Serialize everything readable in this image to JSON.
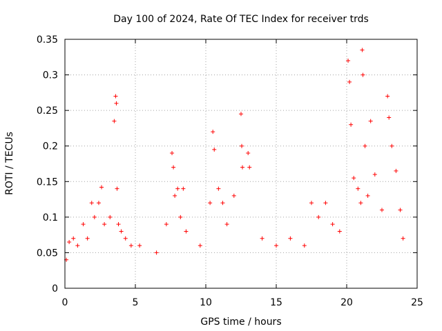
{
  "chart_data": {
    "type": "scatter",
    "title": "Day 100 of 2024, Rate Of TEC Index for receiver trds",
    "xlabel": "GPS time / hours",
    "ylabel": "ROTI / TECUs",
    "xlim": [
      0,
      25
    ],
    "ylim": [
      0,
      0.35
    ],
    "xticks": [
      0,
      5,
      10,
      15,
      20,
      25
    ],
    "xtick_labels": [
      "0",
      "5",
      "10",
      "15",
      "20",
      "25"
    ],
    "yticks": [
      0,
      0.05,
      0.1,
      0.15,
      0.2,
      0.25,
      0.3,
      0.35
    ],
    "ytick_labels": [
      "0",
      "0.05",
      "0.1",
      "0.15",
      "0.2",
      "0.25",
      "0.3",
      "0.35"
    ],
    "grid": true,
    "marker": "+",
    "color": "#ff0000",
    "series": [
      {
        "x": [
          0.1,
          0.3,
          0.6,
          0.9,
          1.3,
          1.6,
          1.9,
          2.1,
          2.4,
          2.6,
          2.8,
          3.2,
          3.5,
          3.6,
          3.65,
          3.7,
          3.8,
          4.0,
          4.3,
          4.7,
          5.3,
          6.5,
          7.2,
          7.6,
          7.7,
          7.8,
          8.0,
          8.2,
          8.4,
          8.6,
          9.6,
          10.3,
          10.5,
          10.6,
          10.9,
          11.2,
          11.5,
          12.0,
          12.5,
          12.55,
          12.6,
          13.0,
          13.1,
          14.0,
          15.0,
          16.0,
          17.0,
          17.5,
          18.0,
          18.5,
          19.0,
          19.5,
          20.1,
          20.2,
          20.3,
          20.5,
          20.8,
          21.0,
          21.1,
          21.15,
          21.3,
          21.5,
          21.7,
          22.0,
          22.5,
          22.9,
          23.0,
          23.2,
          23.5,
          23.8,
          24.0
        ],
        "y": [
          0.04,
          0.065,
          0.07,
          0.06,
          0.09,
          0.07,
          0.12,
          0.1,
          0.12,
          0.142,
          0.09,
          0.1,
          0.235,
          0.27,
          0.26,
          0.14,
          0.09,
          0.08,
          0.07,
          0.06,
          0.06,
          0.05,
          0.09,
          0.19,
          0.17,
          0.13,
          0.14,
          0.1,
          0.14,
          0.08,
          0.06,
          0.12,
          0.22,
          0.195,
          0.14,
          0.12,
          0.09,
          0.13,
          0.245,
          0.2,
          0.17,
          0.19,
          0.17,
          0.07,
          0.06,
          0.07,
          0.06,
          0.12,
          0.1,
          0.12,
          0.09,
          0.08,
          0.32,
          0.29,
          0.23,
          0.155,
          0.14,
          0.12,
          0.335,
          0.3,
          0.2,
          0.13,
          0.235,
          0.16,
          0.11,
          0.27,
          0.24,
          0.2,
          0.165,
          0.11,
          0.07
        ]
      }
    ]
  }
}
